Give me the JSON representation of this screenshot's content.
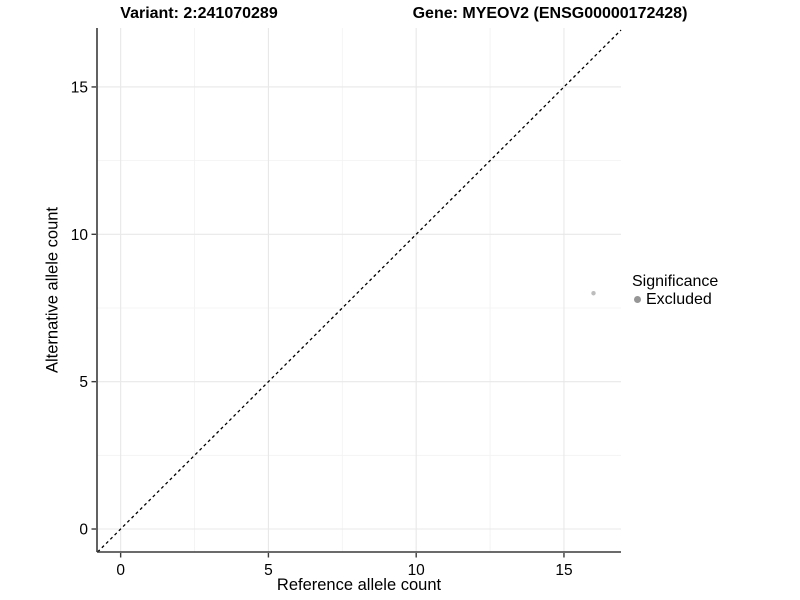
{
  "chart_data": {
    "type": "scatter",
    "titles": {
      "left": "Variant: 2:241070289",
      "right": "Gene: MYEOV2 (ENSG00000172428)"
    },
    "xlabel": "Reference allele count",
    "ylabel": "Alternative allele count",
    "xlim": [
      -0.8,
      16.93
    ],
    "ylim": [
      -0.78,
      17.0
    ],
    "x_ticks": [
      0,
      5,
      10,
      15
    ],
    "y_ticks": [
      0,
      5,
      10,
      15
    ],
    "x_minor_ticks": [
      2.5,
      7.5,
      12.5
    ],
    "y_minor_ticks": [
      2.5,
      7.5,
      12.5
    ],
    "grid": true,
    "identity_line": {
      "slope": 1,
      "intercept": 0,
      "style": "dashed",
      "color": "#000000"
    },
    "series": [
      {
        "name": "Excluded",
        "points": [
          {
            "x": 16,
            "y": 8,
            "significance": "Excluded"
          }
        ],
        "color": "#bdbdbd",
        "point_radius": 2.2
      }
    ],
    "legend": {
      "title": "Significance",
      "position": "right",
      "items": [
        {
          "label": "Excluded",
          "marker_color": "#969696"
        }
      ]
    },
    "colors": {
      "background": "#ffffff",
      "major_grid": "#e8e8e8",
      "minor_grid": "#f2f2f2",
      "axis_line": "#3a3a3a",
      "tick_label": "#000000"
    }
  }
}
